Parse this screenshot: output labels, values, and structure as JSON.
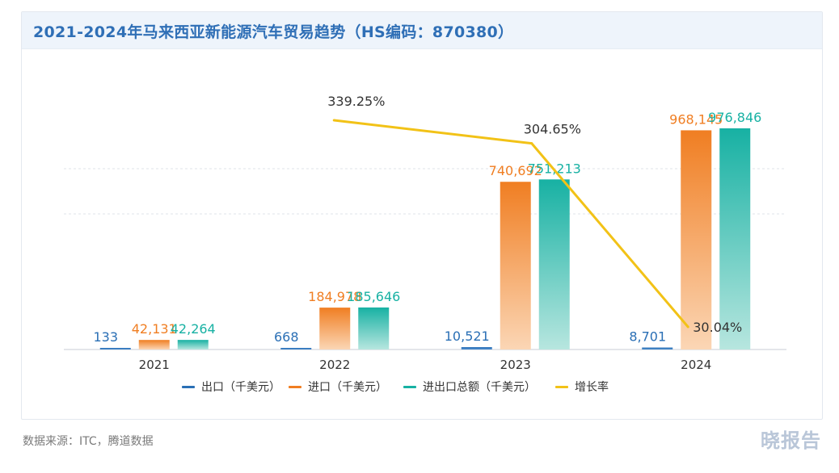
{
  "header": {
    "title": "2021-2024年马来西亚新能源汽车贸易趋势（HS编码：870380）"
  },
  "footer": {
    "source": "数据来源：ITC，腾道数据",
    "watermark": "晓报告"
  },
  "colors": {
    "export": "#2a6fb5",
    "import": "#f07e22",
    "total": "#17b1a3",
    "growth": "#f2c217",
    "title": "#2f6fb6"
  },
  "chart_data": {
    "type": "bar",
    "title": "2021-2024年马来西亚新能源汽车贸易趋势（HS编码：870380）",
    "categories": [
      "2021",
      "2022",
      "2023",
      "2024"
    ],
    "series": [
      {
        "name": "出口（千美元）",
        "type": "bar",
        "values": [
          133,
          668,
          10521,
          8701
        ],
        "labels": [
          "133",
          "668",
          "10,521",
          "8,701"
        ]
      },
      {
        "name": "进口（千美元）",
        "type": "bar",
        "values": [
          42131,
          184978,
          740692,
          968145
        ],
        "labels": [
          "42,131",
          "184,978",
          "740,692",
          "968,145"
        ]
      },
      {
        "name": "进出口总额（千美元）",
        "type": "bar",
        "values": [
          42264,
          185646,
          751213,
          976846
        ],
        "labels": [
          "42,264",
          "185,646",
          "751,213",
          "976,846"
        ]
      },
      {
        "name": "增长率",
        "type": "line",
        "values": [
          null,
          339.25,
          304.65,
          30.04
        ],
        "labels": [
          "",
          "339.25%",
          "304.65%",
          "30.04%"
        ]
      }
    ],
    "legend_position": "bottom",
    "grid": "dashed-horizontal"
  }
}
